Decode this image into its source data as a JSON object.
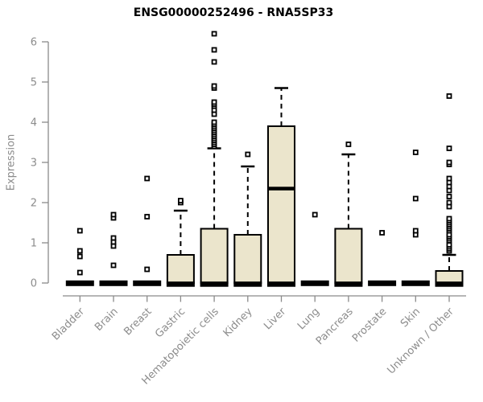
{
  "chart_data": {
    "type": "boxplot",
    "title": "ENSG00000252496 - RNA5SP33",
    "ylabel": "Expression",
    "xlabel": "",
    "ylim": [
      0,
      6
    ],
    "yticks": [
      0,
      1,
      2,
      3,
      4,
      5,
      6
    ],
    "grid": false,
    "x_label_rotation": 45,
    "categories": [
      "Bladder",
      "Brain",
      "Breast",
      "Gastric",
      "Hematopoietic cells",
      "Kidney",
      "Liver",
      "Lung",
      "Pancreas",
      "Prostate",
      "Skin",
      "Unknown / Other"
    ],
    "boxes": [
      {
        "label": "Bladder",
        "q1": 0,
        "median": 0,
        "q3": 0,
        "whisker_low": 0,
        "whisker_high": 0,
        "outliers": [
          0.26,
          0.66,
          0.8,
          1.3
        ]
      },
      {
        "label": "Brain",
        "q1": 0,
        "median": 0,
        "q3": 0,
        "whisker_low": 0,
        "whisker_high": 0,
        "outliers": [
          0.44,
          0.92,
          1.02,
          1.12,
          1.62,
          1.7
        ]
      },
      {
        "label": "Breast",
        "q1": 0,
        "median": 0,
        "q3": 0,
        "whisker_low": 0,
        "whisker_high": 0,
        "outliers": [
          0.34,
          1.65,
          2.6
        ]
      },
      {
        "label": "Gastric",
        "q1": 0,
        "median": 0,
        "q3": 0.7,
        "whisker_low": 0,
        "whisker_high": 1.8,
        "outliers": [
          2.0,
          2.05
        ]
      },
      {
        "label": "Hematopoietic cells",
        "q1": 0,
        "median": 0,
        "q3": 1.35,
        "whisker_low": 0,
        "whisker_high": 3.35,
        "outliers": [
          3.4,
          3.45,
          3.5,
          3.55,
          3.6,
          3.65,
          3.7,
          3.75,
          3.8,
          3.85,
          3.9,
          3.95,
          4.0,
          4.2,
          4.3,
          4.4,
          4.45,
          4.5,
          4.85,
          4.9,
          5.5,
          5.8,
          6.2
        ]
      },
      {
        "label": "Kidney",
        "q1": 0,
        "median": 0,
        "q3": 1.2,
        "whisker_low": 0,
        "whisker_high": 2.9,
        "outliers": [
          3.2
        ]
      },
      {
        "label": "Liver",
        "q1": 0,
        "median": 2.35,
        "q3": 3.9,
        "whisker_low": 0,
        "whisker_high": 4.85,
        "outliers": []
      },
      {
        "label": "Lung",
        "q1": 0,
        "median": 0,
        "q3": 0,
        "whisker_low": 0,
        "whisker_high": 0,
        "outliers": [
          1.7
        ]
      },
      {
        "label": "Pancreas",
        "q1": 0,
        "median": 0,
        "q3": 1.35,
        "whisker_low": 0,
        "whisker_high": 3.2,
        "outliers": [
          3.45
        ]
      },
      {
        "label": "Prostate",
        "q1": 0,
        "median": 0,
        "q3": 0,
        "whisker_low": 0,
        "whisker_high": 0,
        "outliers": [
          1.25
        ]
      },
      {
        "label": "Skin",
        "q1": 0,
        "median": 0,
        "q3": 0,
        "whisker_low": 0,
        "whisker_high": 0,
        "outliers": [
          1.2,
          1.3,
          2.1,
          3.25
        ]
      },
      {
        "label": "Unknown / Other",
        "q1": 0,
        "median": 0,
        "q3": 0.3,
        "whisker_low": 0,
        "whisker_high": 0.7,
        "outliers": [
          0.8,
          0.85,
          0.9,
          0.95,
          1.05,
          1.1,
          1.15,
          1.2,
          1.3,
          1.35,
          1.4,
          1.45,
          1.5,
          1.55,
          1.6,
          1.9,
          2.0,
          2.15,
          2.3,
          2.4,
          2.5,
          2.6,
          2.95,
          3.0,
          3.35,
          4.65
        ]
      }
    ],
    "colors": {
      "box_fill": "#ebe5cc",
      "box_border": "#000000",
      "median": "#000000",
      "whisker": "#000000",
      "outlier_fill": "#ffffff",
      "axis_line": "#8a8a8a",
      "axis_text": "#8c8c8c",
      "title_text": "#000000",
      "background": "#ffffff"
    }
  }
}
